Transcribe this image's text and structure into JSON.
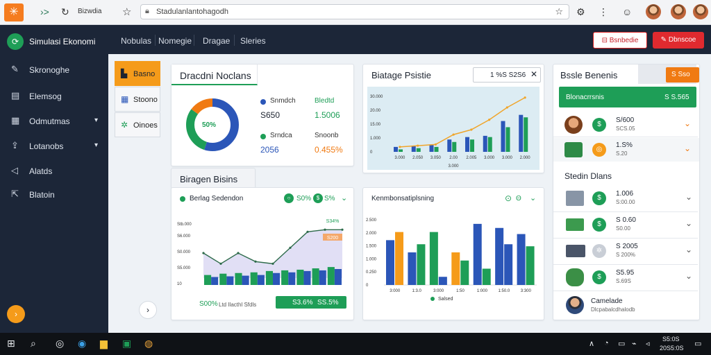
{
  "browser": {
    "tab_title": "Bizwdia",
    "url": "Stadulanlantohagodh",
    "icons": [
      "orange-logo-icon",
      "forward-icon",
      "reload-icon",
      "star-icon",
      "lock-icon",
      "bookmark-icon",
      "extensions-icon",
      "settings-icon",
      "profile-icon"
    ]
  },
  "sidebar": {
    "brand": "Simulasi Ekonomi",
    "items": [
      {
        "label": "Skronoghe",
        "icon": "edit-icon",
        "chevron": false
      },
      {
        "label": "Elemsog",
        "icon": "document-icon",
        "chevron": false
      },
      {
        "label": "Odmutmas",
        "icon": "calendar-icon",
        "chevron": true
      },
      {
        "label": "Lotanobs",
        "icon": "upload-icon",
        "chevron": true
      },
      {
        "label": "Alatds",
        "icon": "send-icon",
        "chevron": false
      },
      {
        "label": "Blatoin",
        "icon": "export-icon",
        "chevron": false
      }
    ],
    "fab": "›"
  },
  "topbar": {
    "tabs": [
      "Nobulas",
      "Nomegie",
      "Dragae",
      "Sleries"
    ],
    "btn_outline": "Bsnbedie",
    "btn_red": "Dbnscoe"
  },
  "left_tabs": [
    {
      "label": "Basno",
      "icon": "building-icon",
      "active": true
    },
    {
      "label": "Stoono",
      "icon": "table-icon",
      "active": false
    },
    {
      "label": "Oinoes",
      "icon": "chart-icon",
      "active": false
    }
  ],
  "donut_card": {
    "title": "Dracdni Noclans",
    "center": "50%",
    "chart_data": {
      "type": "pie",
      "values": [
        55,
        30,
        15
      ],
      "colors": [
        "#2b56b8",
        "#1e9e57",
        "#f07a12"
      ]
    },
    "stats": [
      {
        "label": "Snmdch",
        "value": "S650",
        "dot": "#2b56b8",
        "label2": "Bledtd",
        "value2": "1.5006",
        "color2": "#1e9e57"
      },
      {
        "label": "Srndca",
        "value": "2056",
        "dot": "#1e9e57",
        "label2": "Snoonb",
        "value2": "0.455%",
        "color2": "#f07a12"
      }
    ]
  },
  "growth_card": {
    "title": "Biatage Psistie",
    "select": "1 %S S2S6",
    "chart_data": {
      "type": "bar",
      "categories": [
        "3.000",
        "2.050",
        "3.050",
        "2.00",
        "2.005",
        "3.000",
        "3.000",
        "2.000"
      ],
      "ylabels": [
        "30.000",
        "20.00",
        "15.00",
        "1.000",
        "0"
      ],
      "series": [
        {
          "values": [
            4,
            5,
            6,
            10,
            12,
            13,
            25,
            30
          ],
          "color": "#2b56b8"
        },
        {
          "values": [
            2,
            3,
            4,
            8,
            10,
            12,
            20,
            28
          ],
          "color": "#1e9e57"
        }
      ],
      "line": [
        4,
        5,
        6,
        14,
        18,
        26,
        36,
        44
      ],
      "xlabel_bottom": "3.000"
    }
  },
  "tags_card": {
    "title": "Biragen Bisins"
  },
  "area_card": {
    "title": "Berlag Sedendon",
    "toggles": [
      "S0%",
      "S%"
    ],
    "callout": "S34%",
    "callout2": "S200",
    "ylabels": [
      "Stb.000",
      "S6.000",
      "S0.000",
      "S5.000",
      "10"
    ],
    "chart_data": {
      "type": "area",
      "line": [
        3,
        2,
        3,
        2.2,
        2,
        3.5,
        5,
        5.2,
        5.2
      ],
      "bars": [
        {
          "g": 1.5,
          "b": 1.2
        },
        {
          "g": 1.7,
          "b": 1.3
        },
        {
          "g": 1.8,
          "b": 1.4
        },
        {
          "g": 1.9,
          "b": 1.5
        },
        {
          "g": 2.1,
          "b": 1.8
        },
        {
          "g": 2.2,
          "b": 1.9
        },
        {
          "g": 2.3,
          "b": 2.1
        },
        {
          "g": 2.5,
          "b": 2.2
        },
        {
          "g": 2.7,
          "b": 2.4
        }
      ]
    },
    "foot_left": "S00%",
    "foot_mid": "Ltd Ilacthl Sfdls",
    "foot_btn_a": "S3.6%",
    "foot_btn_b": "SS.5%"
  },
  "bars_card": {
    "title": "Kenmbonsatiplsning",
    "ylabels": [
      "2.500",
      "2.000",
      "1.500",
      "1.000",
      "0.250",
      "0"
    ],
    "chart_data": {
      "type": "bar",
      "groups": [
        [
          {
            "v": 2.2,
            "c": "#2b56b8"
          },
          {
            "v": 2.6,
            "c": "#f59b1a"
          }
        ],
        [
          {
            "v": 1.6,
            "c": "#2b56b8"
          },
          {
            "v": 2.0,
            "c": "#1e9e57"
          }
        ],
        [
          {
            "v": 2.6,
            "c": "#1e9e57"
          },
          {
            "v": 0.4,
            "c": "#2b56b8"
          }
        ],
        [
          {
            "v": 1.6,
            "c": "#f59b1a"
          },
          {
            "v": 1.2,
            "c": "#1e9e57"
          }
        ],
        [
          {
            "v": 3.0,
            "c": "#2b56b8"
          },
          {
            "v": 0.8,
            "c": "#1e9e57"
          }
        ],
        [
          {
            "v": 2.8,
            "c": "#2b56b8"
          },
          {
            "v": 2.0,
            "c": "#2b56b8"
          }
        ],
        [
          {
            "v": 2.5,
            "c": "#2b56b8"
          },
          {
            "v": 1.9,
            "c": "#1e9e57"
          }
        ]
      ],
      "xlabels": [
        "3:000",
        "1:3.0",
        "3:000",
        "1:50",
        "1:000",
        "1:50.0",
        "3:300"
      ],
      "legend": "Salsed"
    }
  },
  "right_panel": {
    "title": "Bssle Benenis",
    "tag": "S Sso",
    "banner_label": "Blonacrrsnis",
    "banner_value": "S S.565",
    "rows_a": [
      {
        "icon": "person-icon",
        "circle": "#1e9e57",
        "value": "S/600",
        "sub": "SCS.05"
      },
      {
        "icon": "money-icon",
        "circle": "#f59b1a",
        "value": "1.S%",
        "sub": "S.20"
      }
    ],
    "section2": "Stedin Dlans",
    "rows_b": [
      {
        "icon": "register-icon",
        "circle": "#1e9e57",
        "value": "1.006",
        "sub": "S:00.00"
      },
      {
        "icon": "cash-icon",
        "circle": "#1e9e57",
        "value": "S 0.60",
        "sub": "S0.00"
      },
      {
        "icon": "truck-icon",
        "circle": "#d0d4da",
        "value": "S 2005",
        "sub": "S 200%"
      },
      {
        "icon": "money-bag-icon",
        "circle": "#1e9e57",
        "value": "S5.95",
        "sub": "S.69S"
      }
    ],
    "person_name": "Camelade",
    "person_sub": "Dlcpabalcdhalodb"
  },
  "taskbar": {
    "time": "S5:0S",
    "date": "20S5:0S"
  }
}
